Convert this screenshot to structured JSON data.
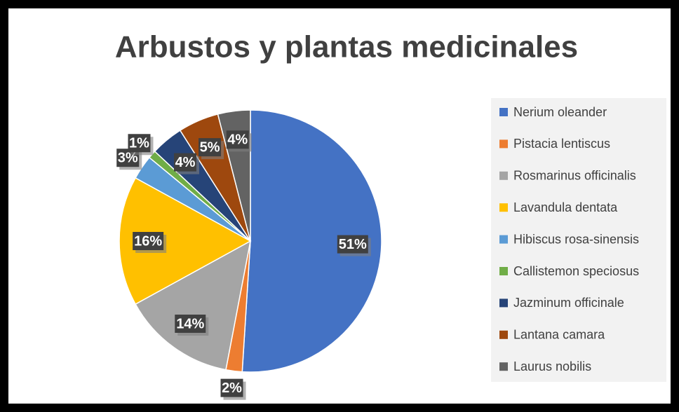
{
  "chart_data": {
    "type": "pie",
    "title": "Arbustos y plantas medicinales",
    "categories": [
      "Nerium oleander",
      "Pistacia lentiscus",
      "Rosmarinus officinalis",
      "Lavandula dentata",
      "Hibiscus rosa-sinensis",
      "Callistemon speciosus",
      "Jazminum officinale",
      "Lantana camara",
      "Laurus nobilis"
    ],
    "values": [
      51,
      2,
      14,
      16,
      3,
      1,
      4,
      5,
      4
    ],
    "value_labels": [
      "51%",
      "2%",
      "14%",
      "16%",
      "3%",
      "1%",
      "4%",
      "5%",
      "4%"
    ],
    "colors": [
      "#4472c4",
      "#ed7d31",
      "#a5a5a5",
      "#ffc000",
      "#5b9bd5",
      "#70ad47",
      "#264478",
      "#9e480e",
      "#636363"
    ],
    "legend": "right"
  }
}
